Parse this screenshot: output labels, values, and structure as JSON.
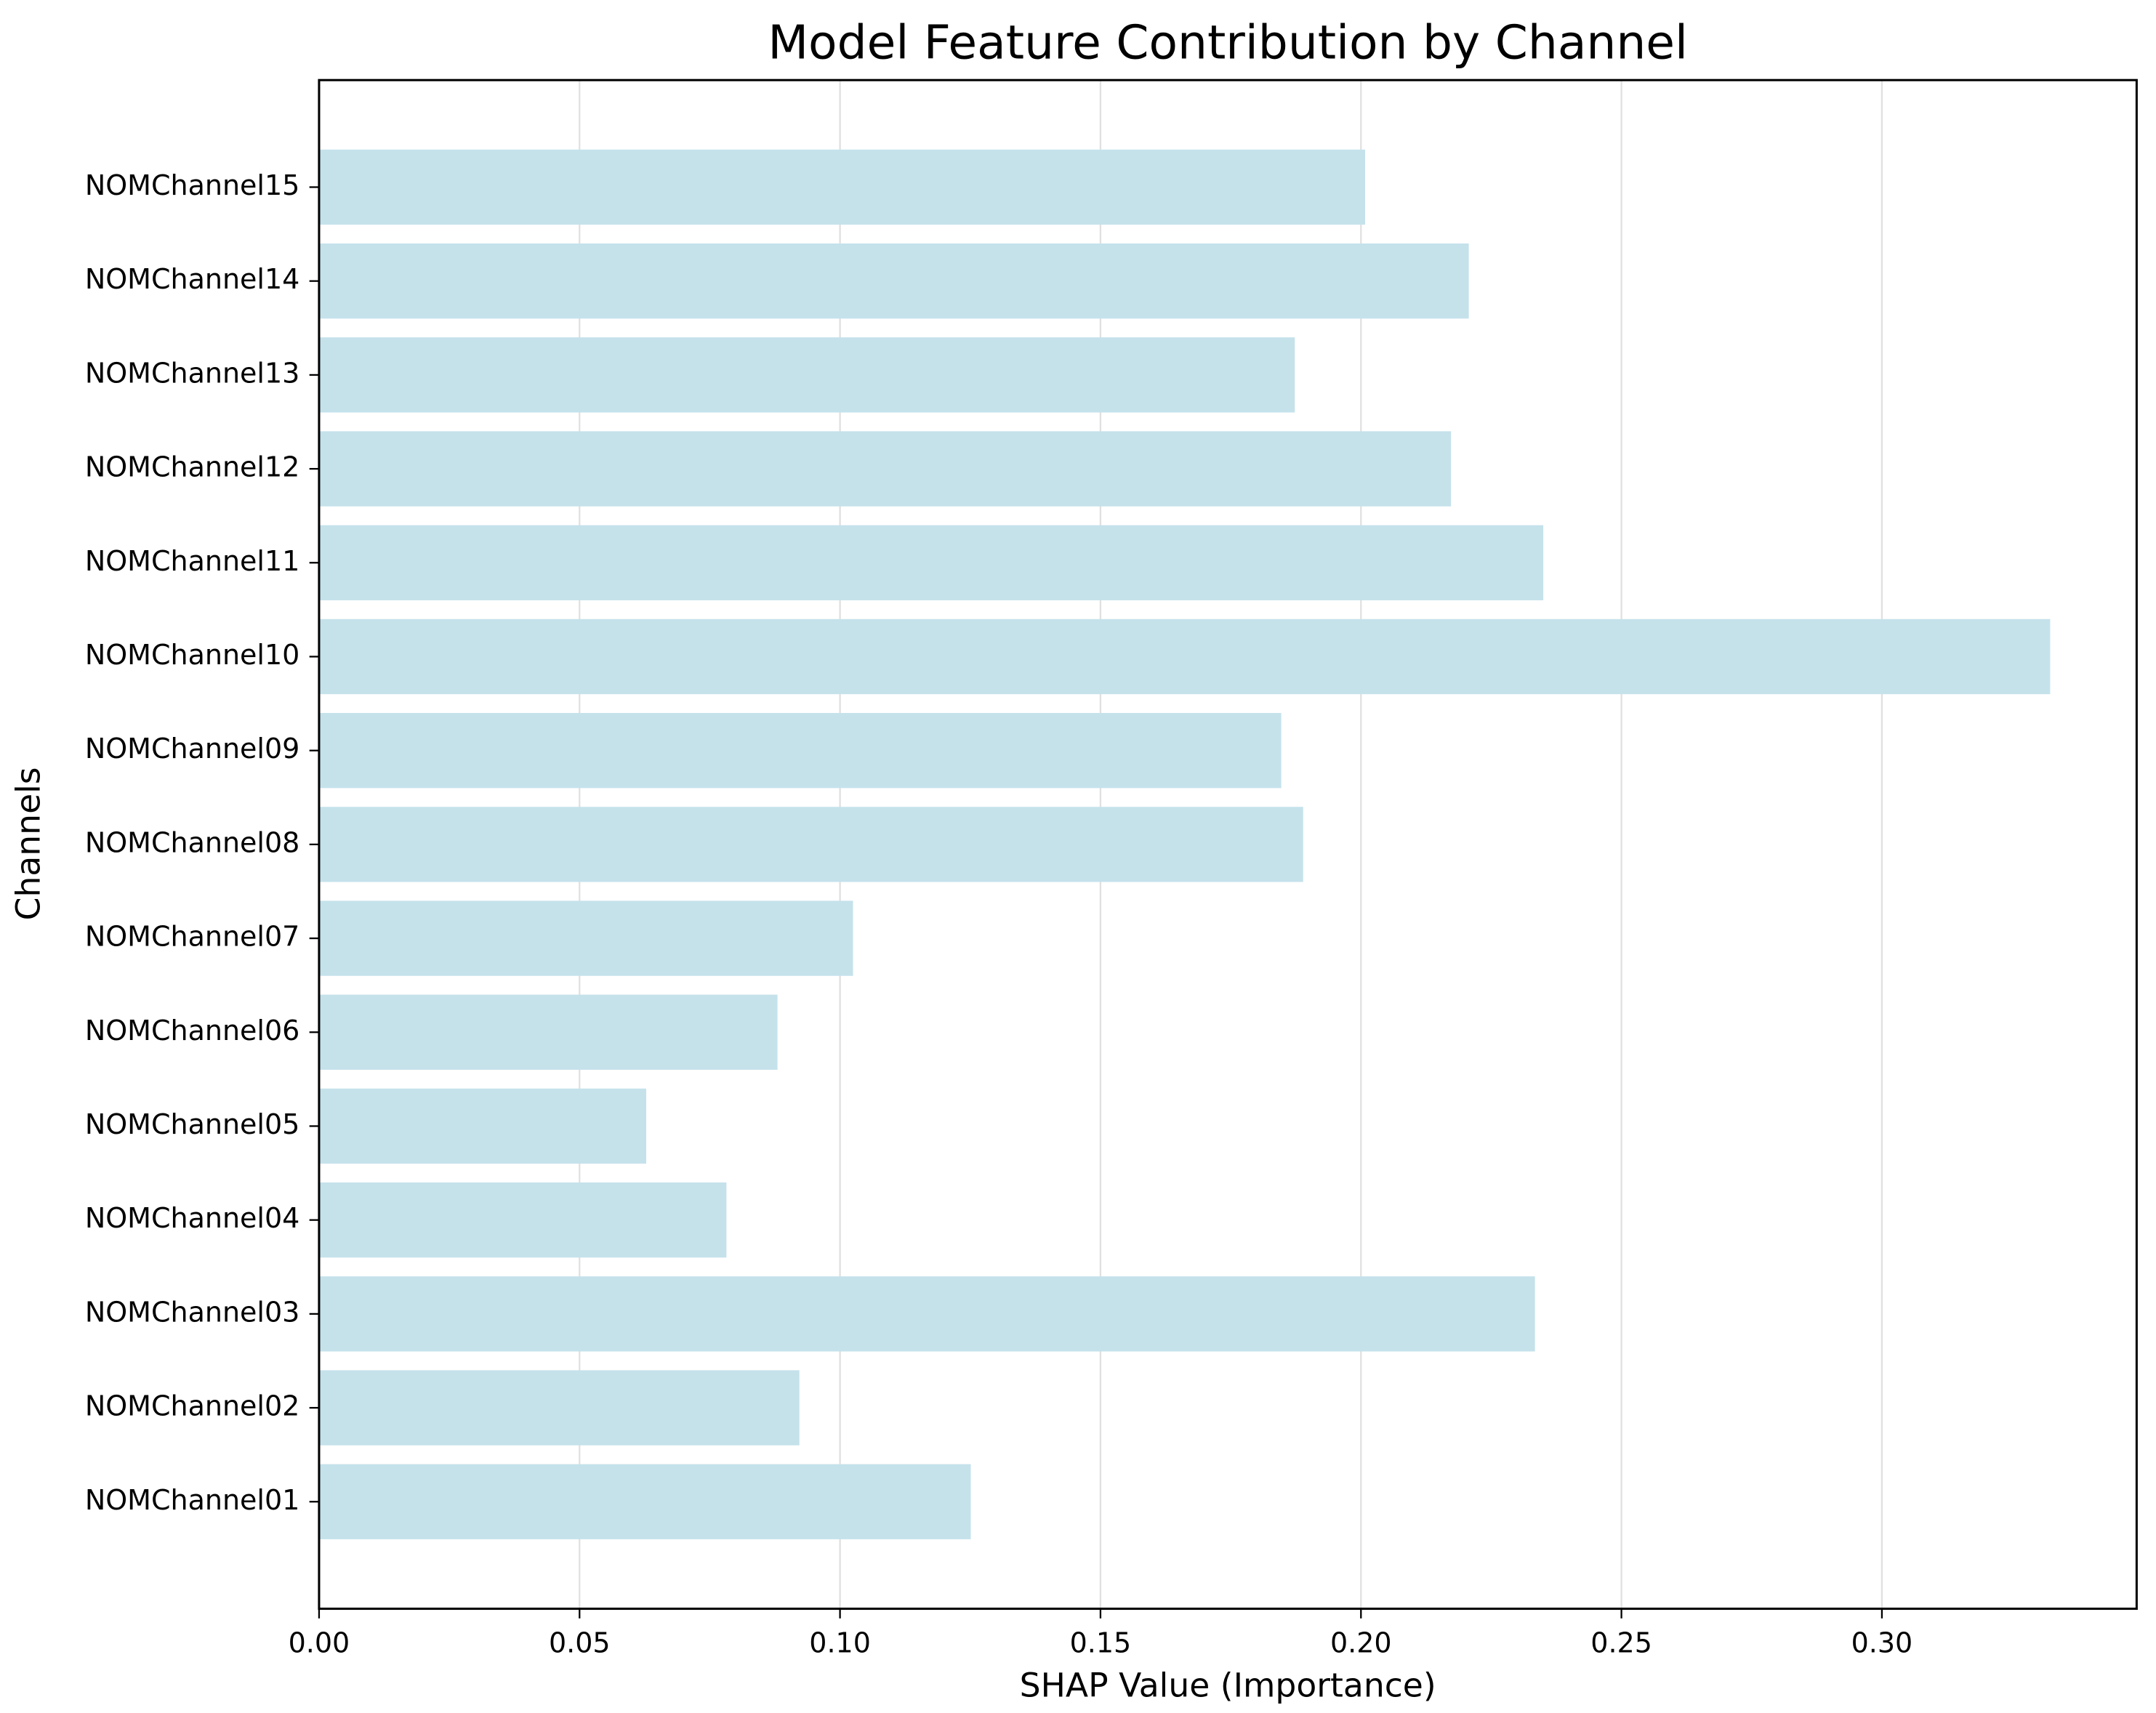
{
  "chart_data": {
    "type": "barh",
    "title": "Model Feature Contribution by Channel",
    "xlabel": "SHAP Value (Importance)",
    "ylabel": "Channels",
    "categories": [
      "NOMChannel01",
      "NOMChannel02",
      "NOMChannel03",
      "NOMChannel04",
      "NOMChannel05",
      "NOMChannel06",
      "NOMChannel07",
      "NOMChannel08",
      "NOMChannel09",
      "NOMChannel10",
      "NOMChannel11",
      "NOMChannel12",
      "NOMChannel13",
      "NOMChannel14",
      "NOMChannel15"
    ],
    "values": [
      0.1251,
      0.0922,
      0.2334,
      0.0782,
      0.0628,
      0.088,
      0.1025,
      0.1889,
      0.1847,
      0.3323,
      0.235,
      0.2173,
      0.1873,
      0.2207,
      0.2008
    ],
    "color": "#c5e2eb",
    "xlim": [
      0,
      0.3489
    ],
    "xticks": [
      {
        "value": 0,
        "label": "0.00"
      },
      {
        "value": 0.05,
        "label": "0.05"
      },
      {
        "value": 0.1,
        "label": "0.10"
      },
      {
        "value": 0.15,
        "label": "0.15"
      },
      {
        "value": 0.2,
        "label": "0.20"
      },
      {
        "value": 0.25,
        "label": "0.25"
      },
      {
        "value": 0.3,
        "label": "0.30"
      }
    ],
    "grid": true
  }
}
